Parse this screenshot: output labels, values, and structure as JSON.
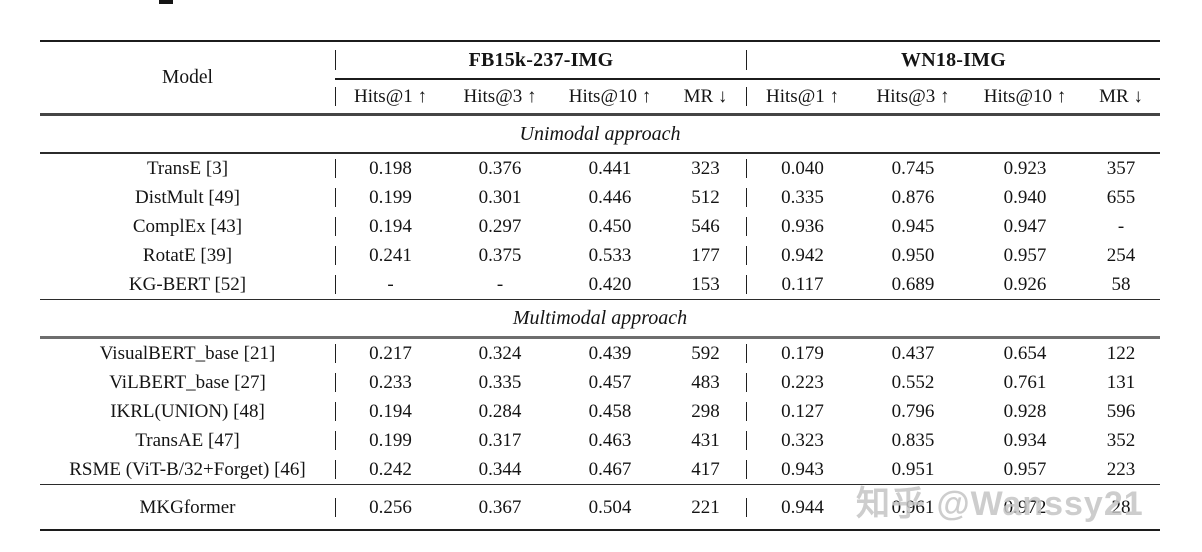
{
  "page": {
    "watermark": "知乎 @Wanssy21"
  },
  "table": {
    "header": {
      "model_label": "Model",
      "groups": [
        {
          "label": "FB15k-237-IMG"
        },
        {
          "label": "WN18-IMG"
        }
      ],
      "metric_labels": [
        "Hits@1 ↑",
        "Hits@3 ↑",
        "Hits@10 ↑",
        "MR ↓"
      ]
    },
    "sections": [
      {
        "label": "Unimodal approach",
        "rows": [
          {
            "model": "TransE [3]",
            "fb15k237": [
              "0.198",
              "0.376",
              "0.441",
              "323"
            ],
            "wn18": [
              "0.040",
              "0.745",
              "0.923",
              "357"
            ]
          },
          {
            "model": "DistMult [49]",
            "fb15k237": [
              "0.199",
              "0.301",
              "0.446",
              "512"
            ],
            "wn18": [
              "0.335",
              "0.876",
              "0.940",
              "655"
            ]
          },
          {
            "model": "ComplEx [43]",
            "fb15k237": [
              "0.194",
              "0.297",
              "0.450",
              "546"
            ],
            "wn18": [
              "0.936",
              "0.945",
              "0.947",
              "-"
            ]
          },
          {
            "model": "RotatE [39]",
            "fb15k237": [
              "0.241",
              "0.375",
              "0.533",
              "177"
            ],
            "wn18": [
              "0.942",
              "0.950",
              "0.957",
              "254"
            ]
          },
          {
            "model": "KG-BERT [52]",
            "fb15k237": [
              "-",
              "-",
              "0.420",
              "153"
            ],
            "wn18": [
              "0.117",
              "0.689",
              "0.926",
              "58"
            ]
          }
        ]
      },
      {
        "label": "Multimodal approach",
        "rows": [
          {
            "model": "VisualBERT_base [21]",
            "fb15k237": [
              "0.217",
              "0.324",
              "0.439",
              "592"
            ],
            "wn18": [
              "0.179",
              "0.437",
              "0.654",
              "122"
            ]
          },
          {
            "model": "ViLBERT_base [27]",
            "fb15k237": [
              "0.233",
              "0.335",
              "0.457",
              "483"
            ],
            "wn18": [
              "0.223",
              "0.552",
              "0.761",
              "131"
            ]
          },
          {
            "model": "IKRL(UNION) [48]",
            "fb15k237": [
              "0.194",
              "0.284",
              "0.458",
              "298"
            ],
            "wn18": [
              "0.127",
              "0.796",
              "0.928",
              "596"
            ]
          },
          {
            "model": "TransAE [47]",
            "fb15k237": [
              "0.199",
              "0.317",
              "0.463",
              "431"
            ],
            "wn18": [
              "0.323",
              "0.835",
              "0.934",
              "352"
            ]
          },
          {
            "model": "RSME (ViT-B/32+Forget) [46]",
            "fb15k237": [
              "0.242",
              "0.344",
              "0.467",
              "417"
            ],
            "wn18": [
              "0.943",
              "0.951",
              "0.957",
              "223"
            ]
          }
        ]
      }
    ],
    "final_row": {
      "model": "MKGformer",
      "fb15k237": [
        "0.256",
        "0.367",
        "0.504",
        "221"
      ],
      "wn18": [
        "0.944",
        "0.961",
        "0.972",
        "28"
      ]
    }
  }
}
